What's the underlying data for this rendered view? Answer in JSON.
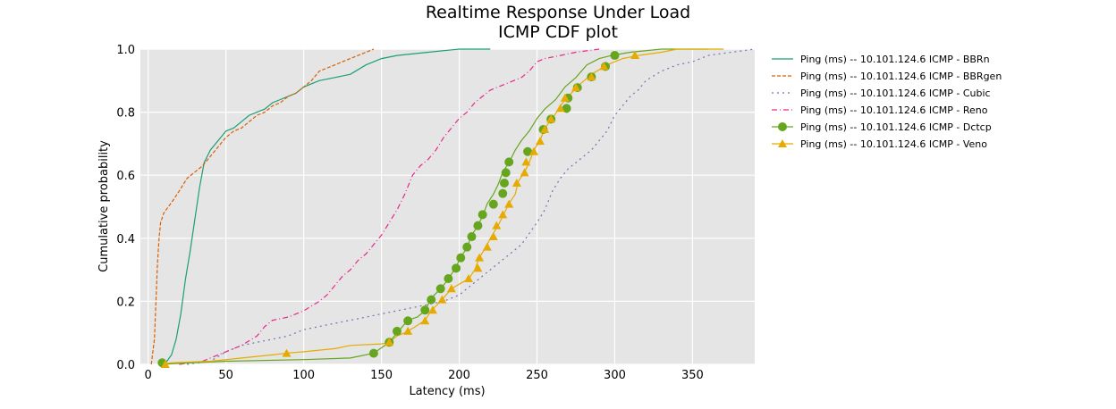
{
  "chart_data": {
    "type": "line",
    "title": "Realtime Response Under Load",
    "subtitle": "ICMP CDF plot",
    "xlabel": "Latency (ms)",
    "ylabel": "Cumulative probability",
    "xlim": [
      -5,
      390
    ],
    "ylim": [
      0,
      1
    ],
    "xticks": [
      0,
      50,
      100,
      150,
      200,
      250,
      300,
      350
    ],
    "yticks": [
      0.0,
      0.2,
      0.4,
      0.6,
      0.8,
      1.0
    ],
    "grid": true,
    "legend_position": "right",
    "series": [
      {
        "name": "Ping (ms) -- 10.101.124.6 ICMP - BBRn",
        "color": "#1b9e77",
        "dash": "",
        "marker": "none",
        "points": [
          [
            9,
            0
          ],
          [
            12,
            0.01
          ],
          [
            15,
            0.03
          ],
          [
            18,
            0.08
          ],
          [
            21,
            0.16
          ],
          [
            24,
            0.27
          ],
          [
            27,
            0.36
          ],
          [
            30,
            0.46
          ],
          [
            33,
            0.56
          ],
          [
            36,
            0.64
          ],
          [
            40,
            0.68
          ],
          [
            45,
            0.71
          ],
          [
            50,
            0.74
          ],
          [
            55,
            0.75
          ],
          [
            60,
            0.77
          ],
          [
            65,
            0.79
          ],
          [
            70,
            0.8
          ],
          [
            75,
            0.81
          ],
          [
            80,
            0.83
          ],
          [
            85,
            0.84
          ],
          [
            90,
            0.85
          ],
          [
            95,
            0.86
          ],
          [
            100,
            0.88
          ],
          [
            110,
            0.9
          ],
          [
            120,
            0.91
          ],
          [
            130,
            0.92
          ],
          [
            140,
            0.95
          ],
          [
            150,
            0.97
          ],
          [
            160,
            0.98
          ],
          [
            180,
            0.99
          ],
          [
            200,
            1.0
          ],
          [
            220,
            1.0
          ]
        ]
      },
      {
        "name": "Ping (ms) -- 10.101.124.6 ICMP - BBRgen",
        "color": "#d95f02",
        "dash": "4,2",
        "marker": "none",
        "points": [
          [
            2,
            0
          ],
          [
            4,
            0.08
          ],
          [
            5,
            0.2
          ],
          [
            6,
            0.32
          ],
          [
            7,
            0.4
          ],
          [
            8,
            0.45
          ],
          [
            10,
            0.48
          ],
          [
            13,
            0.5
          ],
          [
            16,
            0.52
          ],
          [
            20,
            0.55
          ],
          [
            25,
            0.59
          ],
          [
            30,
            0.61
          ],
          [
            35,
            0.63
          ],
          [
            40,
            0.66
          ],
          [
            45,
            0.69
          ],
          [
            50,
            0.72
          ],
          [
            55,
            0.74
          ],
          [
            60,
            0.75
          ],
          [
            65,
            0.77
          ],
          [
            70,
            0.79
          ],
          [
            75,
            0.8
          ],
          [
            80,
            0.82
          ],
          [
            85,
            0.83
          ],
          [
            90,
            0.85
          ],
          [
            95,
            0.86
          ],
          [
            100,
            0.88
          ],
          [
            105,
            0.9
          ],
          [
            110,
            0.93
          ],
          [
            115,
            0.94
          ],
          [
            120,
            0.95
          ],
          [
            125,
            0.96
          ],
          [
            130,
            0.97
          ],
          [
            135,
            0.98
          ],
          [
            140,
            0.99
          ],
          [
            145,
            1.0
          ]
        ]
      },
      {
        "name": "Ping (ms) -- 10.101.124.6 ICMP - Cubic",
        "color": "#7570b3",
        "dash": "2,4",
        "marker": "none",
        "points": [
          [
            25,
            0
          ],
          [
            40,
            0.01
          ],
          [
            50,
            0.04
          ],
          [
            60,
            0.06
          ],
          [
            70,
            0.07
          ],
          [
            80,
            0.08
          ],
          [
            90,
            0.09
          ],
          [
            100,
            0.11
          ],
          [
            110,
            0.12
          ],
          [
            120,
            0.13
          ],
          [
            130,
            0.14
          ],
          [
            140,
            0.15
          ],
          [
            150,
            0.16
          ],
          [
            160,
            0.17
          ],
          [
            170,
            0.18
          ],
          [
            180,
            0.19
          ],
          [
            190,
            0.2
          ],
          [
            200,
            0.22
          ],
          [
            210,
            0.26
          ],
          [
            220,
            0.3
          ],
          [
            230,
            0.34
          ],
          [
            240,
            0.38
          ],
          [
            250,
            0.45
          ],
          [
            255,
            0.49
          ],
          [
            260,
            0.55
          ],
          [
            265,
            0.59
          ],
          [
            270,
            0.62
          ],
          [
            275,
            0.64
          ],
          [
            280,
            0.66
          ],
          [
            285,
            0.68
          ],
          [
            290,
            0.71
          ],
          [
            295,
            0.74
          ],
          [
            300,
            0.79
          ],
          [
            305,
            0.82
          ],
          [
            310,
            0.85
          ],
          [
            315,
            0.87
          ],
          [
            320,
            0.9
          ],
          [
            330,
            0.93
          ],
          [
            340,
            0.95
          ],
          [
            350,
            0.96
          ],
          [
            360,
            0.98
          ],
          [
            375,
            0.99
          ],
          [
            390,
            1.0
          ]
        ]
      },
      {
        "name": "Ping (ms) -- 10.101.124.6 ICMP - Reno",
        "color": "#e7298a",
        "dash": "6,3,1,3",
        "marker": "none",
        "points": [
          [
            20,
            0
          ],
          [
            35,
            0.01
          ],
          [
            45,
            0.03
          ],
          [
            60,
            0.06
          ],
          [
            70,
            0.09
          ],
          [
            75,
            0.12
          ],
          [
            80,
            0.14
          ],
          [
            90,
            0.15
          ],
          [
            100,
            0.17
          ],
          [
            110,
            0.2
          ],
          [
            115,
            0.22
          ],
          [
            120,
            0.25
          ],
          [
            125,
            0.28
          ],
          [
            130,
            0.3
          ],
          [
            135,
            0.33
          ],
          [
            140,
            0.35
          ],
          [
            145,
            0.38
          ],
          [
            150,
            0.41
          ],
          [
            155,
            0.45
          ],
          [
            160,
            0.49
          ],
          [
            165,
            0.54
          ],
          [
            170,
            0.6
          ],
          [
            175,
            0.63
          ],
          [
            180,
            0.65
          ],
          [
            185,
            0.68
          ],
          [
            190,
            0.72
          ],
          [
            195,
            0.75
          ],
          [
            200,
            0.78
          ],
          [
            205,
            0.8
          ],
          [
            210,
            0.83
          ],
          [
            215,
            0.85
          ],
          [
            220,
            0.87
          ],
          [
            225,
            0.88
          ],
          [
            230,
            0.89
          ],
          [
            235,
            0.9
          ],
          [
            240,
            0.91
          ],
          [
            245,
            0.93
          ],
          [
            250,
            0.96
          ],
          [
            255,
            0.97
          ],
          [
            265,
            0.98
          ],
          [
            275,
            0.99
          ],
          [
            290,
            1.0
          ]
        ]
      },
      {
        "name": "Ping (ms) -- 10.101.124.6 ICMP - Dctcp",
        "color": "#66a61e",
        "dash": "",
        "marker": "circle",
        "points": [
          [
            7,
            0
          ],
          [
            50,
            0.01
          ],
          [
            100,
            0.015
          ],
          [
            130,
            0.02
          ],
          [
            145,
            0.035
          ],
          [
            155,
            0.07
          ],
          [
            160,
            0.1
          ],
          [
            167,
            0.14
          ],
          [
            173,
            0.15
          ],
          [
            178,
            0.17
          ],
          [
            182,
            0.21
          ],
          [
            188,
            0.24
          ],
          [
            193,
            0.27
          ],
          [
            198,
            0.31
          ],
          [
            201,
            0.34
          ],
          [
            205,
            0.37
          ],
          [
            208,
            0.41
          ],
          [
            212,
            0.44
          ],
          [
            215,
            0.47
          ],
          [
            218,
            0.51
          ],
          [
            222,
            0.54
          ],
          [
            225,
            0.57
          ],
          [
            228,
            0.61
          ],
          [
            232,
            0.64
          ],
          [
            236,
            0.68
          ],
          [
            240,
            0.71
          ],
          [
            245,
            0.74
          ],
          [
            250,
            0.78
          ],
          [
            255,
            0.81
          ],
          [
            262,
            0.84
          ],
          [
            268,
            0.88
          ],
          [
            275,
            0.91
          ],
          [
            282,
            0.95
          ],
          [
            290,
            0.97
          ],
          [
            298,
            0.98
          ],
          [
            310,
            0.99
          ],
          [
            330,
            1.0
          ],
          [
            360,
            1.0
          ]
        ],
        "markers": [
          [
            9,
            0.005
          ],
          [
            145,
            0.035
          ],
          [
            155,
            0.07
          ],
          [
            160,
            0.105
          ],
          [
            167,
            0.138
          ],
          [
            178,
            0.172
          ],
          [
            182,
            0.205
          ],
          [
            188,
            0.24
          ],
          [
            193,
            0.272
          ],
          [
            198,
            0.305
          ],
          [
            201,
            0.338
          ],
          [
            205,
            0.372
          ],
          [
            208,
            0.405
          ],
          [
            212,
            0.44
          ],
          [
            215,
            0.475
          ],
          [
            222,
            0.508
          ],
          [
            228,
            0.542
          ],
          [
            229,
            0.575
          ],
          [
            230,
            0.608
          ],
          [
            232,
            0.642
          ],
          [
            244,
            0.675
          ],
          [
            254,
            0.745
          ],
          [
            259,
            0.778
          ],
          [
            269,
            0.812
          ],
          [
            270,
            0.845
          ],
          [
            276,
            0.878
          ],
          [
            285,
            0.912
          ],
          [
            294,
            0.945
          ],
          [
            300,
            0.98
          ]
        ]
      },
      {
        "name": "Ping (ms) -- 10.101.124.6 ICMP - Veno",
        "color": "#e6ab02",
        "dash": "",
        "marker": "triangle",
        "points": [
          [
            7,
            0
          ],
          [
            15,
            0.005
          ],
          [
            40,
            0.01
          ],
          [
            60,
            0.02
          ],
          [
            80,
            0.03
          ],
          [
            90,
            0.036
          ],
          [
            100,
            0.04
          ],
          [
            110,
            0.045
          ],
          [
            120,
            0.05
          ],
          [
            130,
            0.06
          ],
          [
            150,
            0.065
          ],
          [
            155,
            0.07
          ],
          [
            160,
            0.09
          ],
          [
            165,
            0.1
          ],
          [
            172,
            0.12
          ],
          [
            178,
            0.14
          ],
          [
            182,
            0.17
          ],
          [
            188,
            0.2
          ],
          [
            195,
            0.24
          ],
          [
            202,
            0.26
          ],
          [
            206,
            0.27
          ],
          [
            210,
            0.3
          ],
          [
            213,
            0.34
          ],
          [
            217,
            0.37
          ],
          [
            220,
            0.4
          ],
          [
            225,
            0.44
          ],
          [
            228,
            0.47
          ],
          [
            232,
            0.51
          ],
          [
            236,
            0.54
          ],
          [
            238,
            0.58
          ],
          [
            242,
            0.61
          ],
          [
            245,
            0.64
          ],
          [
            248,
            0.68
          ],
          [
            252,
            0.71
          ],
          [
            255,
            0.75
          ],
          [
            260,
            0.78
          ],
          [
            265,
            0.82
          ],
          [
            270,
            0.85
          ],
          [
            278,
            0.89
          ],
          [
            285,
            0.92
          ],
          [
            295,
            0.95
          ],
          [
            305,
            0.97
          ],
          [
            315,
            0.98
          ],
          [
            330,
            0.99
          ],
          [
            340,
            1.0
          ],
          [
            370,
            1.0
          ]
        ],
        "markers": [
          [
            11,
            0.0
          ],
          [
            89,
            0.035
          ],
          [
            155,
            0.07
          ],
          [
            167,
            0.105
          ],
          [
            178,
            0.138
          ],
          [
            183,
            0.172
          ],
          [
            189,
            0.205
          ],
          [
            195,
            0.24
          ],
          [
            206,
            0.272
          ],
          [
            212,
            0.305
          ],
          [
            213,
            0.338
          ],
          [
            218,
            0.372
          ],
          [
            222,
            0.405
          ],
          [
            224,
            0.44
          ],
          [
            228,
            0.475
          ],
          [
            232,
            0.508
          ],
          [
            237,
            0.575
          ],
          [
            242,
            0.608
          ],
          [
            243,
            0.642
          ],
          [
            248,
            0.675
          ],
          [
            252,
            0.708
          ],
          [
            255,
            0.745
          ],
          [
            259,
            0.778
          ],
          [
            265,
            0.812
          ],
          [
            268,
            0.845
          ],
          [
            275,
            0.878
          ],
          [
            285,
            0.912
          ],
          [
            293,
            0.945
          ],
          [
            313,
            0.98
          ]
        ]
      }
    ]
  }
}
